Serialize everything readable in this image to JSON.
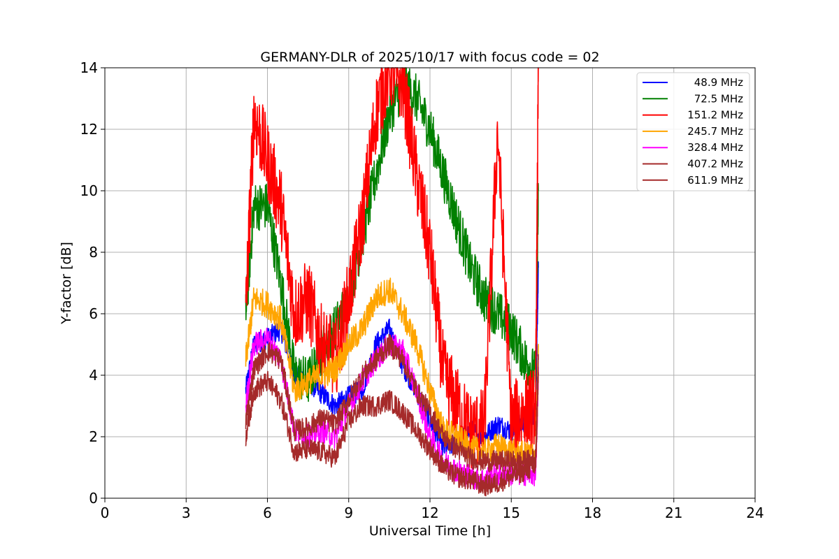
{
  "chart_data": {
    "type": "line",
    "title": "GERMANY-DLR of 2025/10/17 with focus code = 02",
    "xlabel": "Universal Time [h]",
    "ylabel": "Y-factor [dB]",
    "xlim": [
      0,
      24
    ],
    "ylim": [
      0,
      14
    ],
    "xticks": [
      0,
      3,
      6,
      9,
      12,
      15,
      18,
      21,
      24
    ],
    "yticks": [
      0,
      2,
      4,
      6,
      8,
      10,
      12,
      14
    ],
    "grid": true,
    "legend_position": "top-right",
    "series": [
      {
        "name": "48.9 MHz",
        "color": "#0000ff",
        "x": [
          5.2,
          5.5,
          6.0,
          6.5,
          7.0,
          7.5,
          8.0,
          8.5,
          9.0,
          9.5,
          10.0,
          10.5,
          11.0,
          11.5,
          12.0,
          12.5,
          13.0,
          13.5,
          14.0,
          14.5,
          15.0,
          15.5,
          15.9,
          16.0
        ],
        "y": [
          3.5,
          5.0,
          5.2,
          5.5,
          4.0,
          3.8,
          3.4,
          3.0,
          3.3,
          3.5,
          5.0,
          5.5,
          4.3,
          3.5,
          2.5,
          1.6,
          1.8,
          2.2,
          2.0,
          2.4,
          2.2,
          2.5,
          2.8,
          7.5
        ]
      },
      {
        "name": "72.5 MHz",
        "color": "#008000",
        "x": [
          5.2,
          5.5,
          6.0,
          6.5,
          7.0,
          7.5,
          8.0,
          8.5,
          9.0,
          9.5,
          10.0,
          10.5,
          11.0,
          11.5,
          12.0,
          12.5,
          13.0,
          13.5,
          14.0,
          14.5,
          15.0,
          15.5,
          15.9,
          16.0
        ],
        "y": [
          6.0,
          9.5,
          9.5,
          7.0,
          4.0,
          3.8,
          4.8,
          5.5,
          6.5,
          8.5,
          10.5,
          12.5,
          13.5,
          13.0,
          12.0,
          10.5,
          9.0,
          7.5,
          6.5,
          6.0,
          5.5,
          4.5,
          4.0,
          10.0
        ]
      },
      {
        "name": "151.2 MHz",
        "color": "#ff0000",
        "x": [
          5.2,
          5.5,
          6.0,
          6.5,
          7.0,
          7.5,
          8.0,
          8.5,
          9.0,
          9.5,
          10.0,
          10.5,
          11.0,
          11.5,
          12.0,
          12.5,
          13.0,
          13.5,
          14.0,
          14.5,
          15.0,
          15.5,
          15.9,
          16.0
        ],
        "y": [
          6.0,
          12.5,
          11.0,
          9.5,
          6.0,
          6.5,
          5.0,
          4.5,
          6.5,
          9.0,
          12.5,
          14.0,
          13.5,
          10.5,
          8.0,
          4.0,
          3.0,
          2.2,
          2.3,
          12.0,
          2.5,
          2.8,
          3.0,
          14.0
        ]
      },
      {
        "name": "245.7 MHz",
        "color": "#ffa500",
        "x": [
          5.2,
          5.5,
          6.0,
          6.5,
          7.0,
          7.5,
          8.0,
          8.5,
          9.0,
          9.5,
          10.0,
          10.5,
          11.0,
          11.5,
          12.0,
          12.5,
          13.0,
          13.5,
          14.0,
          14.5,
          15.0,
          15.5,
          15.9,
          16.0
        ],
        "y": [
          4.5,
          6.5,
          6.3,
          5.8,
          3.5,
          3.8,
          4.0,
          4.2,
          5.0,
          5.5,
          6.5,
          6.8,
          6.0,
          5.0,
          3.5,
          2.2,
          2.0,
          1.6,
          1.5,
          1.7,
          1.5,
          1.4,
          1.4,
          5.0
        ]
      },
      {
        "name": "328.4 MHz",
        "color": "#ff00ff",
        "x": [
          5.2,
          5.5,
          6.0,
          6.5,
          7.0,
          7.5,
          8.0,
          8.5,
          9.0,
          9.5,
          10.0,
          10.5,
          11.0,
          11.5,
          12.0,
          12.5,
          13.0,
          13.5,
          14.0,
          14.5,
          15.0,
          15.5,
          15.9,
          16.0
        ],
        "y": [
          3.0,
          5.0,
          5.2,
          4.5,
          2.2,
          2.0,
          2.2,
          2.0,
          3.0,
          3.8,
          4.5,
          5.0,
          4.8,
          3.5,
          2.0,
          1.2,
          0.9,
          0.7,
          0.6,
          0.8,
          0.8,
          0.8,
          0.8,
          4.0
        ]
      },
      {
        "name": "407.2 MHz",
        "color": "#a52a2a",
        "x": [
          5.2,
          5.5,
          6.0,
          6.5,
          7.0,
          7.5,
          8.0,
          8.5,
          9.0,
          9.5,
          10.0,
          10.5,
          11.0,
          11.5,
          12.0,
          12.5,
          13.0,
          13.5,
          14.0,
          14.5,
          15.0,
          15.5,
          15.9,
          16.0
        ],
        "y": [
          2.5,
          4.2,
          4.8,
          4.5,
          2.2,
          2.3,
          2.6,
          2.4,
          3.2,
          4.0,
          4.5,
          5.0,
          4.5,
          3.5,
          2.8,
          2.0,
          1.6,
          1.3,
          1.2,
          1.2,
          1.2,
          1.2,
          1.3,
          4.5
        ]
      },
      {
        "name": "611.9 MHz",
        "color": "#a52a2a",
        "x": [
          5.2,
          5.5,
          6.0,
          6.5,
          7.0,
          7.5,
          8.0,
          8.5,
          9.0,
          9.5,
          10.0,
          10.5,
          11.0,
          11.5,
          12.0,
          12.5,
          13.0,
          13.5,
          14.0,
          14.5,
          15.0,
          15.5,
          15.9,
          16.0
        ],
        "y": [
          2.0,
          3.5,
          3.8,
          3.2,
          1.5,
          1.6,
          1.5,
          1.3,
          2.5,
          3.0,
          3.0,
          3.2,
          2.8,
          2.2,
          1.6,
          1.0,
          0.7,
          0.6,
          0.4,
          0.5,
          0.7,
          0.9,
          1.0,
          4.0
        ]
      }
    ]
  }
}
